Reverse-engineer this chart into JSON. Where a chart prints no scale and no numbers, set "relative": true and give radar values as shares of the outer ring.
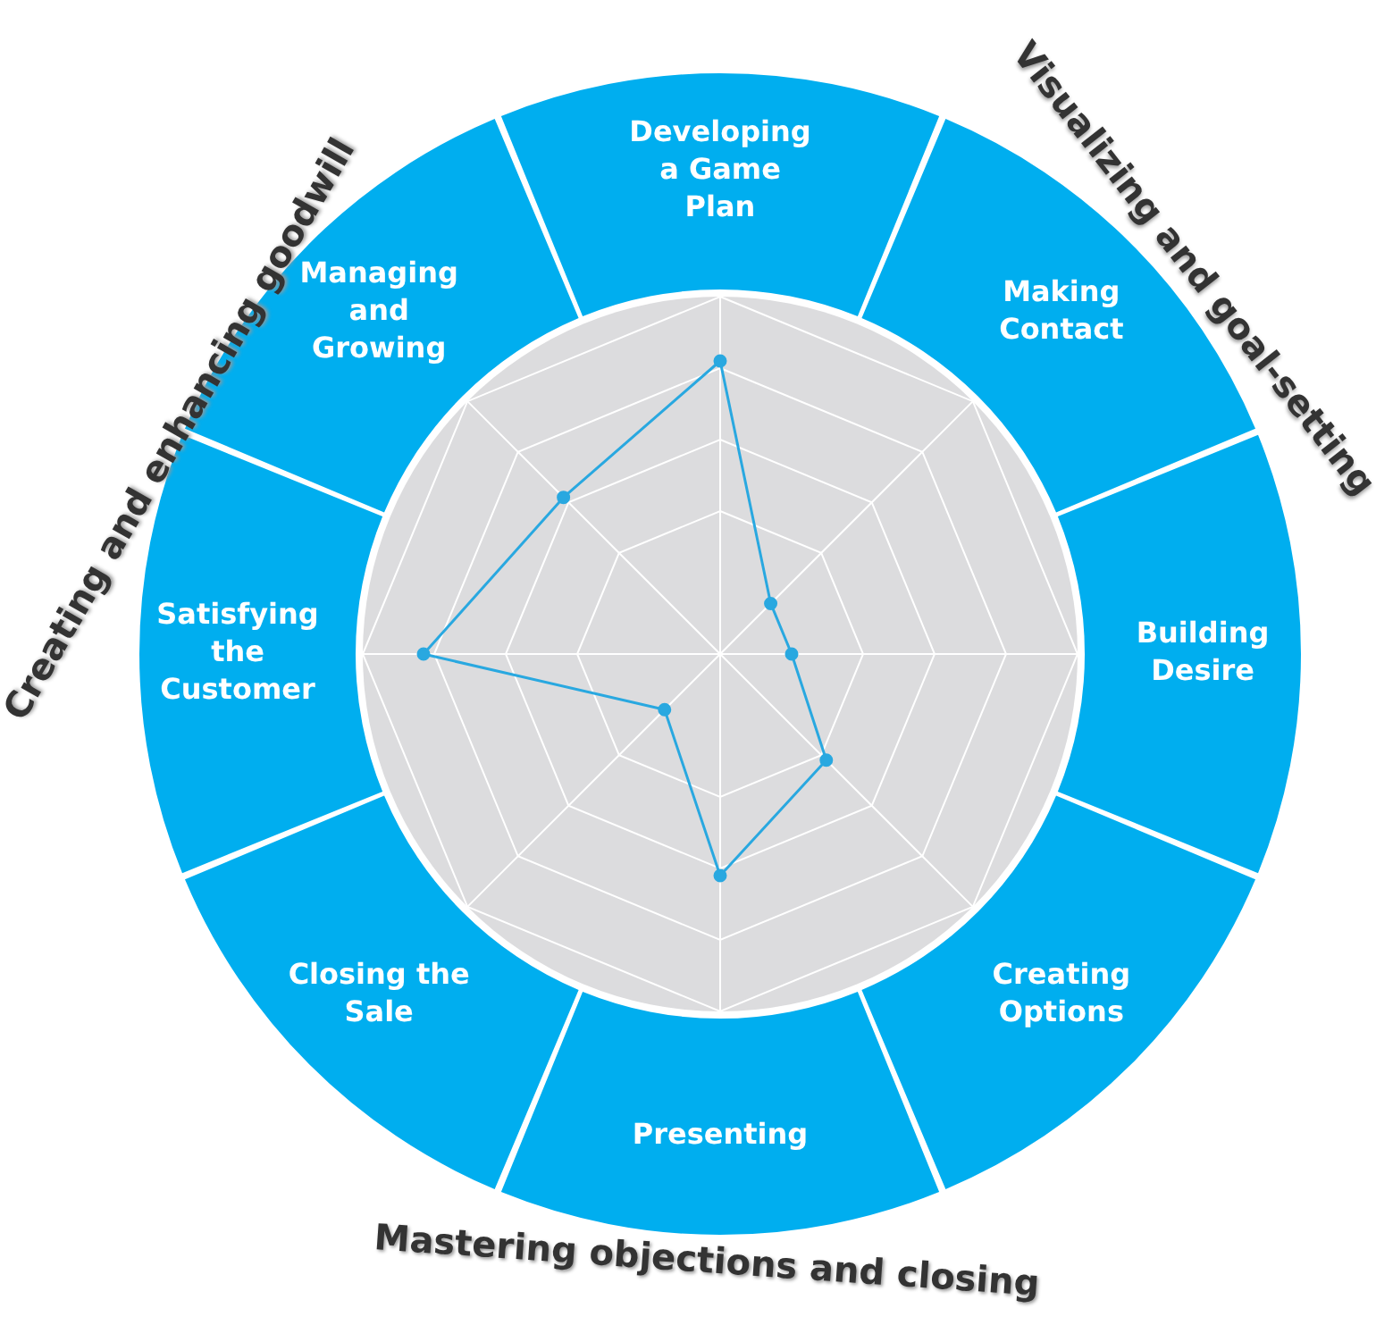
{
  "chart_data": {
    "type": "radar",
    "relative": true,
    "categories": [
      "Developing a Game Plan",
      "Making Contact",
      "Building Desire",
      "Creating Options",
      "Presenting",
      "Closing the Sale",
      "Satisfying the Customer",
      "Managing and Growing"
    ],
    "series": [
      {
        "color": "#29a8e0",
        "values": [
          0.82,
          0.2,
          0.2,
          0.42,
          0.62,
          0.22,
          0.83,
          0.62
        ]
      }
    ],
    "marker": "circle",
    "line_style": "solid",
    "grid": true,
    "legend": false,
    "annotations": [
      "Creating and enhancing goodwill",
      "Visualizing and goal-setting",
      "Mastering objections and closing"
    ]
  }
}
